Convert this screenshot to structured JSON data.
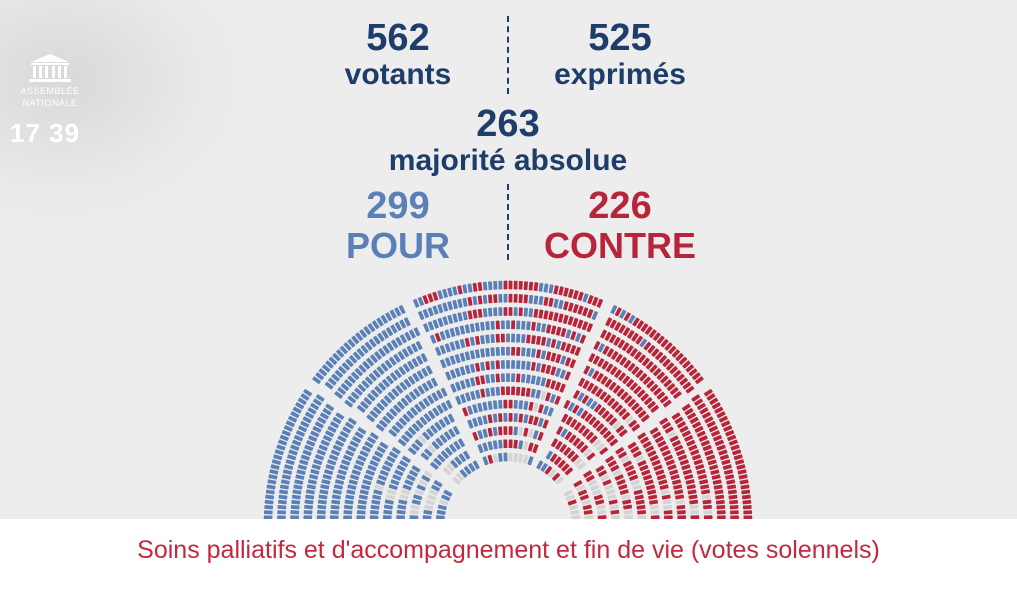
{
  "channel": {
    "logo_name": [
      "ASSEMBLÉE",
      "NATIONALE"
    ],
    "clock": "17 39"
  },
  "vote": {
    "votants": {
      "value": "562",
      "label": "votants"
    },
    "exprimes": {
      "value": "525",
      "label": "exprimés"
    },
    "majorite": {
      "value": "263",
      "label": "majorité absolue"
    },
    "pour": {
      "value": "299",
      "label": "POUR"
    },
    "contre": {
      "value": "226",
      "label": "CONTRE"
    }
  },
  "hemicycle": {
    "seat_counts": {
      "pour": 299,
      "contre": 226,
      "other": 37
    },
    "colors": {
      "pour": "#5b80b8",
      "contre": "#b8253a",
      "other": "#d4d4d4"
    }
  },
  "caption": "Soins palliatifs et d'accompagnement et fin de vie (votes solennels)"
}
